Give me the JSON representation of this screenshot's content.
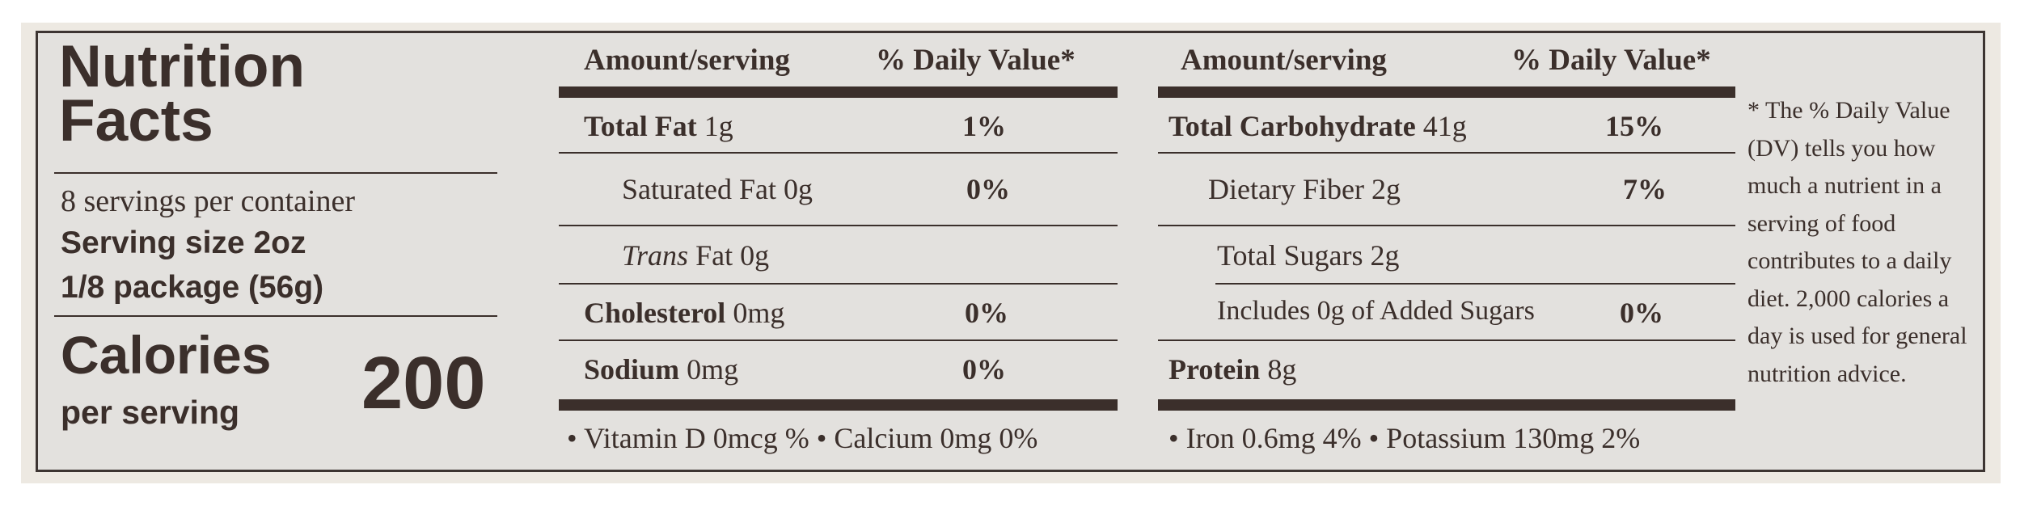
{
  "title": "Nutrition Facts",
  "servings_per_container": "8 servings per container",
  "serving_size_label": "Serving size",
  "serving_size_value": "2oz",
  "serving_size_package": "1/8 package (56g)",
  "calories_label": "Calories",
  "calories_sub": "per serving",
  "calories_value": "200",
  "col1": {
    "amount_header": "Amount/serving",
    "dv_header": "% Daily Value*",
    "total_fat": {
      "name": "Total Fat",
      "amount": "1g",
      "dv": "1%"
    },
    "saturated_fat": {
      "name": "Saturated Fat",
      "amount": "0g",
      "dv": "0%"
    },
    "trans_fat": {
      "name": "Trans",
      "suffix": "Fat",
      "amount": "0g"
    },
    "cholesterol": {
      "name": "Cholesterol",
      "amount": "0mg",
      "dv": "0%"
    },
    "sodium": {
      "name": "Sodium",
      "amount": "0mg",
      "dv": "0%"
    },
    "vitamins": "• Vitamin D 0mcg % • Calcium 0mg 0%"
  },
  "col2": {
    "amount_header": "Amount/serving",
    "dv_header": "% Daily Value*",
    "total_carb": {
      "name": "Total Carbohydrate",
      "amount": "41g",
      "dv": "15%"
    },
    "fiber": {
      "name": "Dietary Fiber",
      "amount": "2g",
      "dv": "7%"
    },
    "sugars": {
      "name": "Total Sugars",
      "amount": "2g"
    },
    "added_sugars": {
      "name": "Includes 0g of Added Sugars",
      "dv": "0%"
    },
    "protein": {
      "name": "Protein",
      "amount": "8g"
    },
    "minerals": "• Iron 0.6mg 4% • Potassium 130mg 2%"
  },
  "footnote": "* The % Daily Value (DV) tells you how much a nutrient in a serving of food contributes to a daily diet. 2,000 calories a day is used for general nutrition advice."
}
